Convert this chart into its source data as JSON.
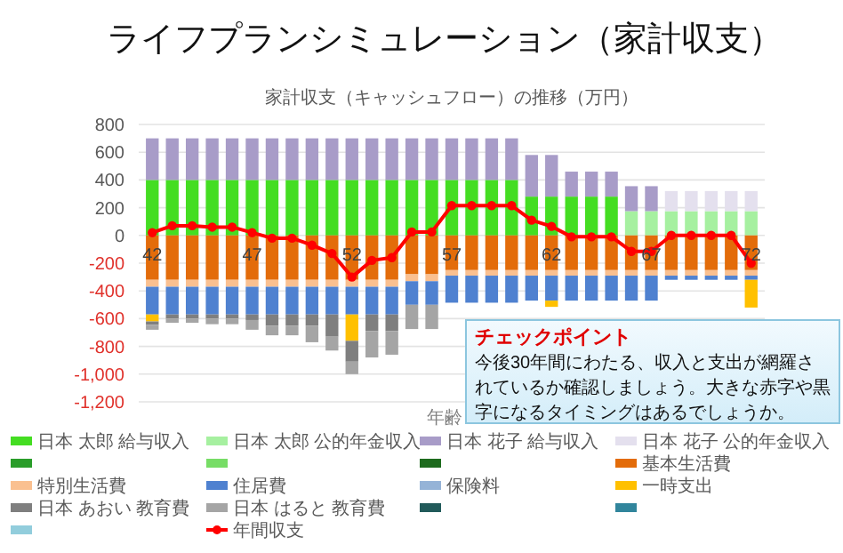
{
  "chart_data": {
    "type": "bar",
    "title": "ライフプランシミュレーション（家計収支）",
    "subtitle": "家計収支（キャッシュフロー）の推移（万円）",
    "xlabel": "年齢",
    "categories": [
      "42",
      null,
      null,
      null,
      null,
      "47",
      null,
      null,
      null,
      null,
      "52",
      null,
      null,
      null,
      null,
      "57",
      null,
      null,
      null,
      null,
      "62",
      null,
      null,
      null,
      null,
      "67",
      null,
      null,
      null,
      null,
      "72"
    ],
    "series": [
      {
        "name": "日本 太郎 給与収入",
        "color": "#44dd22",
        "values": [
          400,
          400,
          400,
          400,
          400,
          400,
          400,
          400,
          400,
          400,
          400,
          400,
          400,
          400,
          400,
          400,
          400,
          400,
          400,
          280,
          280,
          280,
          280,
          280,
          null,
          null,
          null,
          null,
          null,
          null,
          null
        ]
      },
      {
        "name": "日本 太郎 公的年金収入",
        "color": "#a6f0a0",
        "values": [
          null,
          null,
          null,
          null,
          null,
          null,
          null,
          null,
          null,
          null,
          null,
          null,
          null,
          null,
          null,
          null,
          null,
          null,
          null,
          null,
          null,
          null,
          null,
          null,
          175,
          175,
          175,
          175,
          175,
          175,
          175
        ]
      },
      {
        "name": "日本 花子 給与収入",
        "color": "#a89cc8",
        "values": [
          300,
          300,
          300,
          300,
          300,
          300,
          300,
          300,
          300,
          300,
          300,
          300,
          300,
          300,
          300,
          300,
          300,
          300,
          300,
          300,
          300,
          180,
          180,
          180,
          180,
          180,
          null,
          null,
          null,
          null,
          null
        ]
      },
      {
        "name": "日本 花子 公的年金収入",
        "color": "#e4e0ee",
        "values": [
          null,
          null,
          null,
          null,
          null,
          null,
          null,
          null,
          null,
          null,
          null,
          null,
          null,
          null,
          null,
          null,
          null,
          null,
          null,
          null,
          null,
          null,
          null,
          null,
          null,
          null,
          145,
          145,
          145,
          145,
          145
        ]
      },
      {
        "color": "#2a9d2a",
        "values": [
          null,
          null,
          null,
          null,
          null,
          null,
          null,
          null,
          null,
          null,
          null,
          null,
          null,
          null,
          null,
          null,
          null,
          null,
          null,
          null,
          null,
          null,
          null,
          null,
          null,
          null,
          null,
          null,
          null,
          null,
          null
        ]
      },
      {
        "color": "#77dd66",
        "values": [
          null,
          null,
          null,
          null,
          null,
          null,
          null,
          null,
          null,
          null,
          null,
          null,
          null,
          null,
          null,
          null,
          null,
          null,
          null,
          null,
          null,
          null,
          null,
          null,
          null,
          null,
          null,
          null,
          null,
          null,
          null
        ]
      },
      {
        "color": "#1e6b1e",
        "values": [
          null,
          null,
          null,
          null,
          null,
          null,
          null,
          null,
          null,
          null,
          null,
          null,
          null,
          null,
          null,
          null,
          null,
          null,
          null,
          null,
          null,
          null,
          null,
          null,
          null,
          null,
          null,
          null,
          null,
          null,
          null
        ]
      },
      {
        "name": "基本生活費",
        "color": "#e36c0a",
        "values": [
          -320,
          -320,
          -320,
          -320,
          -320,
          -320,
          -320,
          -320,
          -320,
          -320,
          -320,
          -320,
          -320,
          -280,
          -280,
          -250,
          -250,
          -250,
          -250,
          -250,
          -250,
          -250,
          -250,
          -250,
          -250,
          -250,
          -250,
          -250,
          -250,
          -250,
          -250
        ]
      },
      {
        "name": "特別生活費",
        "color": "#fac090",
        "values": [
          -50,
          -50,
          -50,
          -50,
          -50,
          -50,
          -50,
          -50,
          -50,
          -50,
          -50,
          -50,
          -50,
          -50,
          -50,
          -40,
          -40,
          -40,
          -40,
          -40,
          -40,
          -40,
          -40,
          -40,
          -40,
          -40,
          -40,
          -40,
          -40,
          -40,
          -40
        ]
      },
      {
        "name": "住居費",
        "color": "#4f81d0",
        "values": [
          -200,
          -200,
          -200,
          -200,
          -200,
          -200,
          -200,
          -200,
          -200,
          -200,
          -200,
          -200,
          -200,
          -170,
          -170,
          -195,
          -195,
          -195,
          -195,
          -180,
          -180,
          -180,
          -180,
          -180,
          -180,
          -180,
          -30,
          -30,
          -30,
          -30,
          -30
        ]
      },
      {
        "name": "保険料",
        "color": "#95b3d7",
        "values": [
          null,
          null,
          null,
          null,
          null,
          null,
          null,
          null,
          null,
          null,
          null,
          null,
          null,
          null,
          null,
          null,
          null,
          null,
          null,
          null,
          null,
          null,
          null,
          null,
          null,
          null,
          null,
          null,
          null,
          null,
          null
        ]
      },
      {
        "name": "一時支出",
        "color": "#ffc000",
        "values": [
          -50,
          null,
          null,
          null,
          null,
          null,
          null,
          null,
          null,
          null,
          -190,
          null,
          null,
          null,
          null,
          null,
          null,
          null,
          null,
          null,
          -45,
          null,
          null,
          null,
          null,
          null,
          null,
          null,
          null,
          null,
          -200
        ]
      },
      {
        "name": "日本 あおい 教育費",
        "color": "#7f7f7f",
        "values": [
          -25,
          -30,
          -30,
          -30,
          -30,
          -40,
          -80,
          -80,
          -80,
          -160,
          -150,
          -120,
          -120,
          null,
          null,
          null,
          null,
          null,
          null,
          null,
          null,
          null,
          null,
          null,
          null,
          null,
          null,
          null,
          null,
          null,
          null
        ]
      },
      {
        "name": "日本 はると 教育費",
        "color": "#a5a5a5",
        "values": [
          -35,
          -30,
          -30,
          -40,
          -40,
          -70,
          -70,
          -70,
          -120,
          -100,
          -90,
          -190,
          -170,
          -175,
          -175,
          null,
          null,
          null,
          null,
          null,
          null,
          null,
          null,
          null,
          null,
          null,
          null,
          null,
          null,
          null,
          null
        ]
      },
      {
        "color": "#215a5a",
        "values": [
          null,
          null,
          null,
          null,
          null,
          null,
          null,
          null,
          null,
          null,
          null,
          null,
          null,
          null,
          null,
          null,
          null,
          null,
          null,
          null,
          null,
          null,
          null,
          null,
          null,
          null,
          null,
          null,
          null,
          null,
          null
        ]
      },
      {
        "color": "#31859c",
        "values": [
          null,
          null,
          null,
          null,
          null,
          null,
          null,
          null,
          null,
          null,
          null,
          null,
          null,
          null,
          null,
          null,
          null,
          null,
          null,
          null,
          null,
          null,
          null,
          null,
          null,
          null,
          null,
          null,
          null,
          null,
          null
        ]
      },
      {
        "color": "#92cddc",
        "values": [
          null,
          null,
          null,
          null,
          null,
          null,
          null,
          null,
          null,
          null,
          null,
          null,
          null,
          null,
          null,
          null,
          null,
          null,
          null,
          null,
          null,
          null,
          null,
          null,
          null,
          null,
          null,
          null,
          null,
          null,
          null
        ]
      },
      {
        "name": "年間収支",
        "type": "line",
        "color": "#ff0000",
        "values": [
          20,
          70,
          70,
          60,
          60,
          20,
          -20,
          -20,
          -70,
          -130,
          -300,
          -180,
          -160,
          25,
          25,
          215,
          215,
          215,
          215,
          110,
          65,
          -10,
          -10,
          -10,
          -115,
          -115,
          0,
          0,
          0,
          0,
          -200
        ]
      }
    ],
    "stacked": true,
    "marker": "circle",
    "grid": "y",
    "legend": "bottom",
    "ylim": [
      -1200,
      800
    ],
    "yticks": [
      {
        "value": -1200,
        "label": "-1,200"
      },
      {
        "value": -1000,
        "label": "-1,000"
      },
      -800,
      -600,
      -400,
      -200,
      0,
      200,
      400,
      600,
      800
    ],
    "annotations": [
      "チェックポイント",
      "今後30年間にわたる、収入と支出が網羅されているか確認しましょう。大きな赤字や黒字になるタイミングはあるでしょうか。"
    ]
  }
}
